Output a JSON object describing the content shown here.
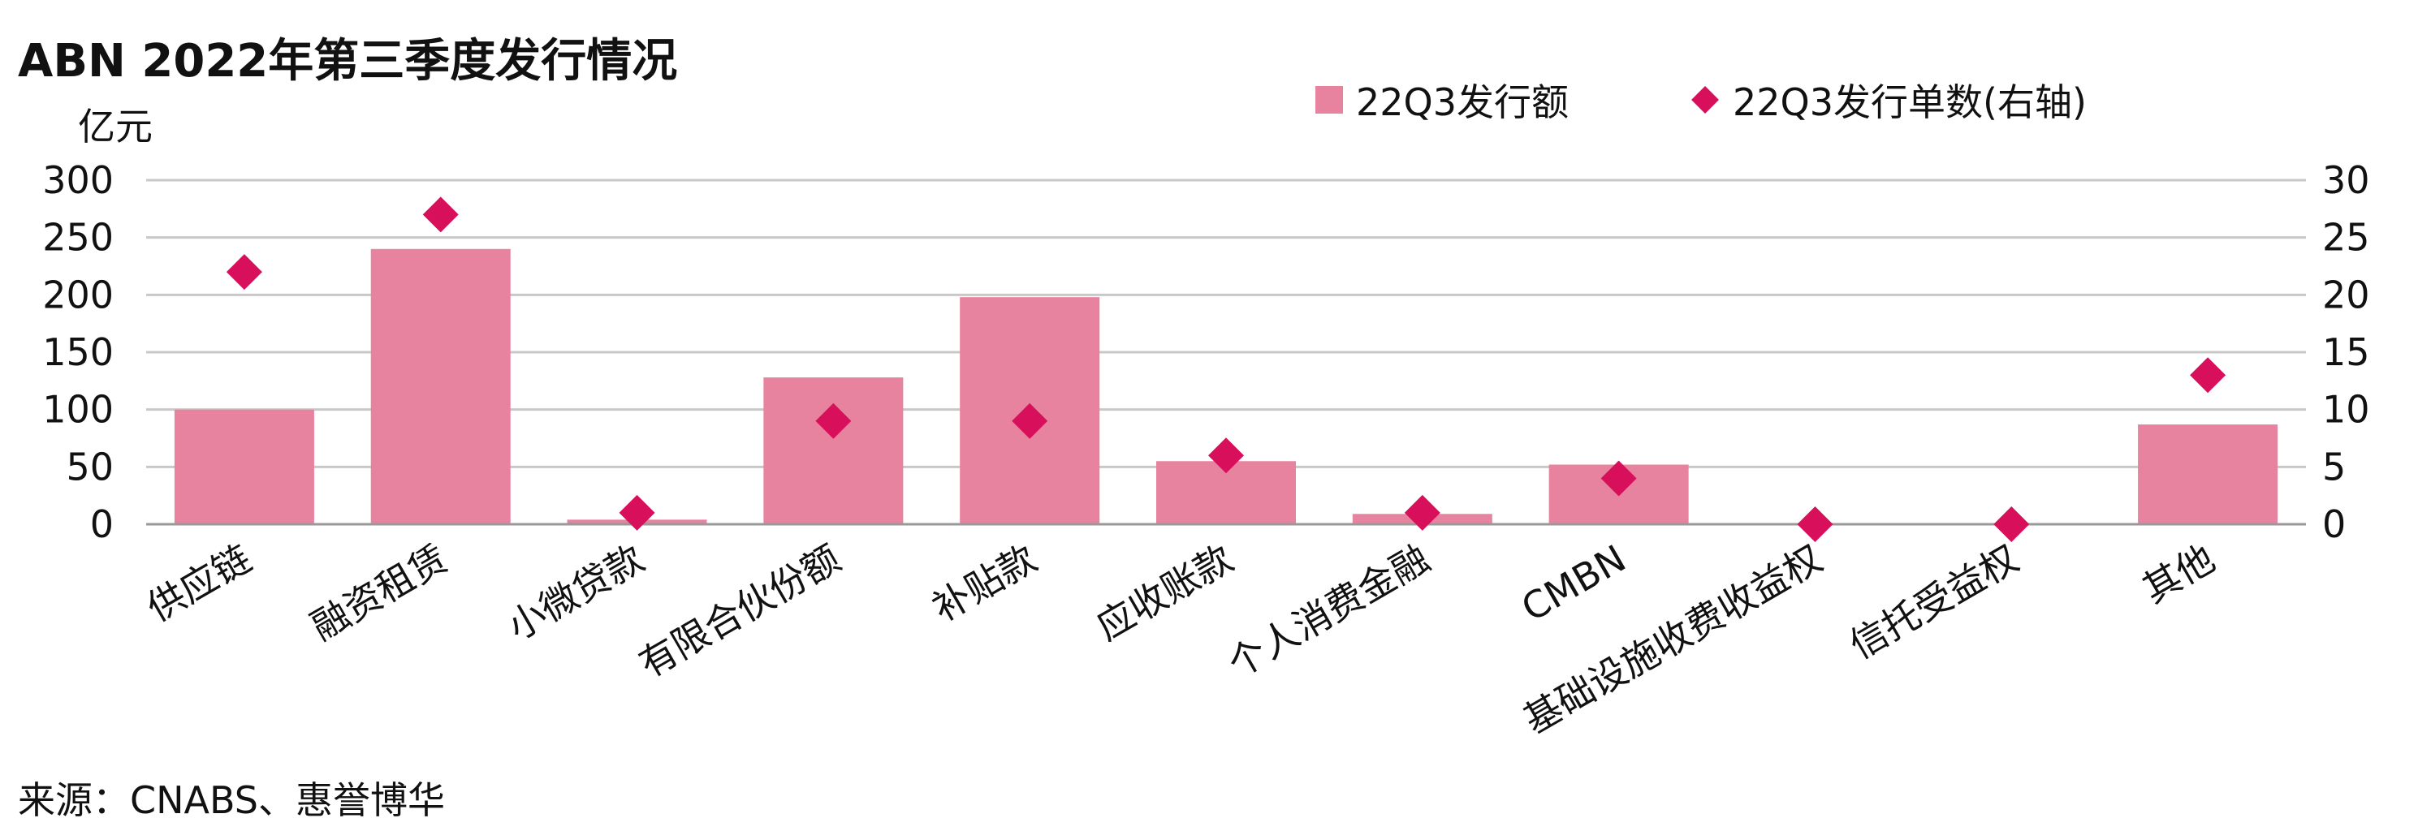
{
  "title": "ABN 2022年第三季度发行情况",
  "unit_label": "亿元",
  "source": "来源：CNABS、惠誉博华",
  "colors": {
    "bar": "#e8839f",
    "marker": "#d80f5a",
    "grid": "#c8c8c8",
    "axis": "#999999"
  },
  "chart_data": {
    "type": "bar",
    "title": "ABN 2022年第三季度发行情况",
    "ylabel": "亿元",
    "categories": [
      "供应链",
      "融资租赁",
      "小微贷款",
      "有限合伙份额",
      "补贴款",
      "应收账款",
      "个人消费金融",
      "CMBN",
      "基础设施收费收益权",
      "信托受益权",
      "其他"
    ],
    "series": [
      {
        "name": "22Q3发行额",
        "type": "bar",
        "axis": "left",
        "values": [
          100,
          240,
          4,
          128,
          198,
          55,
          9,
          52,
          0,
          0,
          87
        ]
      },
      {
        "name": "22Q3发行单数(右轴)",
        "type": "scatter",
        "marker": "diamond",
        "axis": "right",
        "values": [
          22,
          27,
          1,
          9,
          9,
          6,
          1,
          4,
          0,
          0,
          13
        ]
      }
    ],
    "ylim": [
      0,
      300
    ],
    "y_ticks": [
      0,
      50,
      100,
      150,
      200,
      250,
      300
    ],
    "y2lim": [
      0,
      30
    ],
    "y2_ticks": [
      0,
      5,
      10,
      15,
      20,
      25,
      30
    ],
    "grid": true,
    "legend_position": "top-right"
  }
}
